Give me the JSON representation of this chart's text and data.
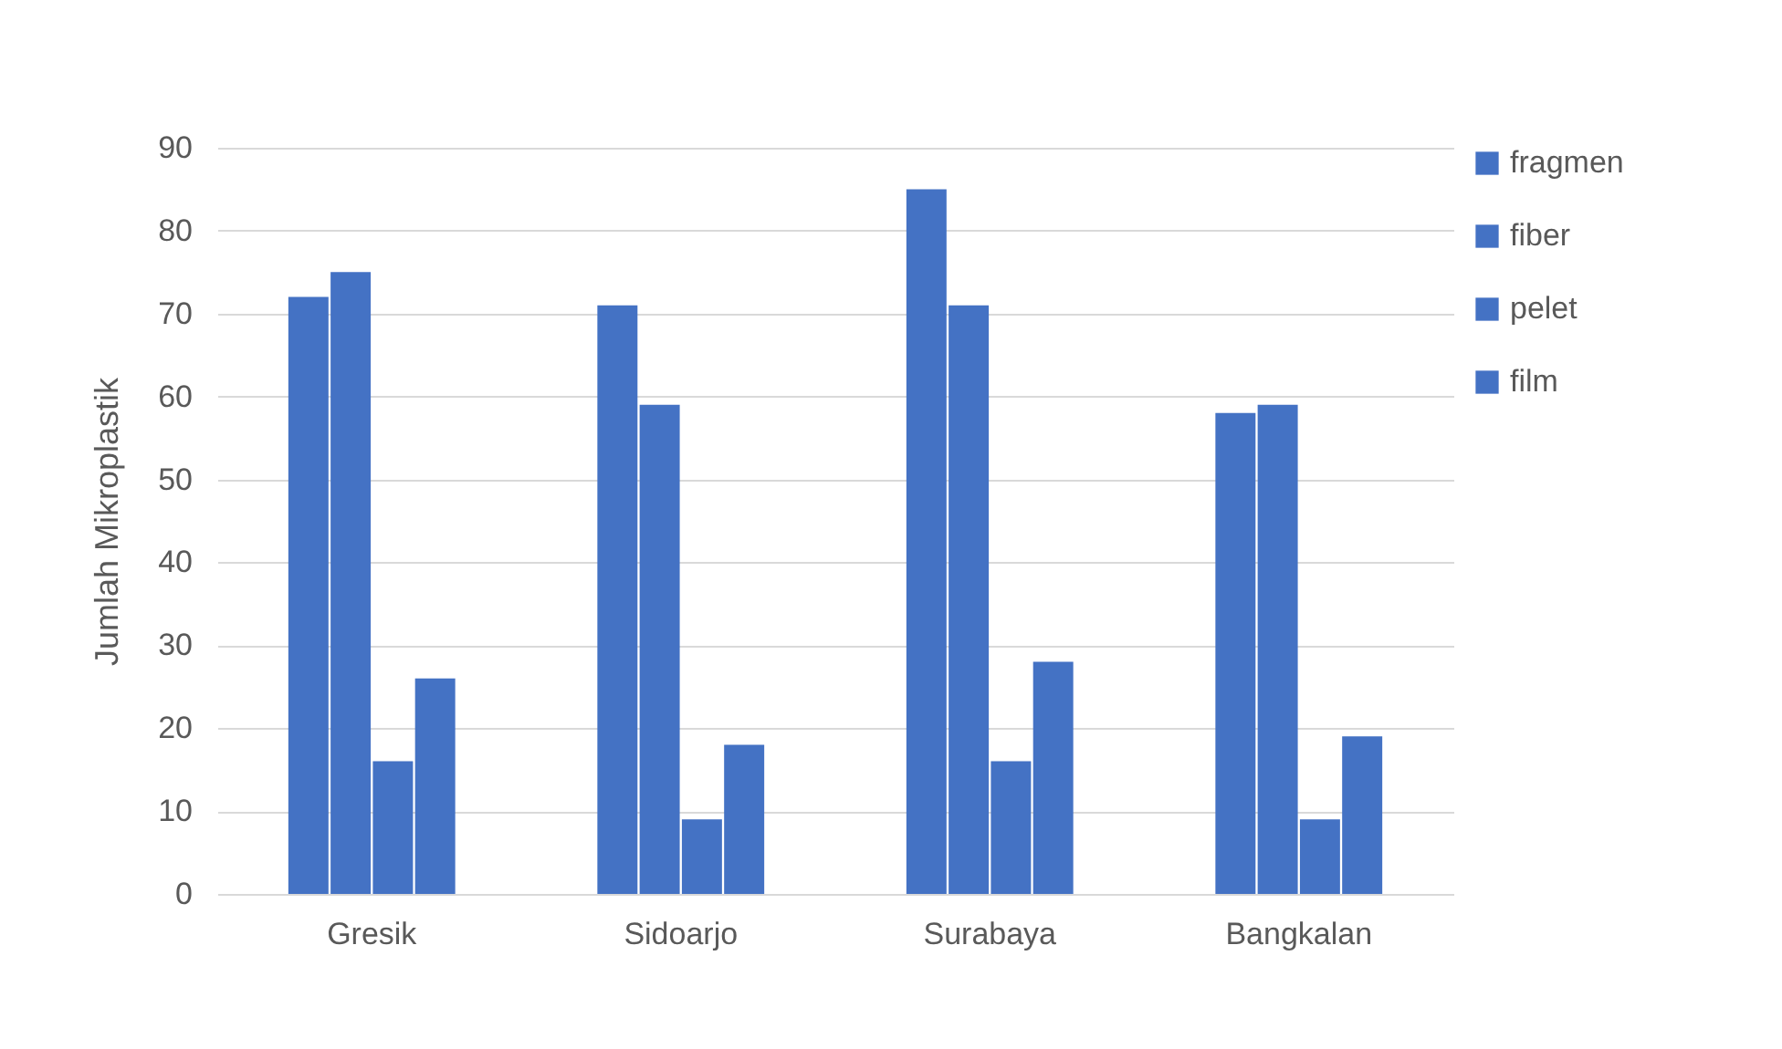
{
  "chart_data": {
    "type": "bar",
    "ylabel": "Jumlah Mikroplastik",
    "categories": [
      "Gresik",
      "Sidoarjo",
      "Surabaya",
      "Bangkalan"
    ],
    "series": [
      {
        "name": "fragmen",
        "color": "#4472c4",
        "values": [
          72,
          71,
          85,
          58
        ]
      },
      {
        "name": "fiber",
        "color": "#4472c4",
        "values": [
          75,
          59,
          71,
          59
        ]
      },
      {
        "name": "pelet",
        "color": "#4472c4",
        "values": [
          16,
          9,
          16,
          9
        ]
      },
      {
        "name": "film",
        "color": "#4472c4",
        "values": [
          26,
          18,
          28,
          19
        ]
      }
    ],
    "ylim": [
      0,
      90
    ],
    "yticks": [
      0,
      10,
      20,
      30,
      40,
      50,
      60,
      70,
      80,
      90
    ],
    "grid": "y",
    "legend": "right"
  }
}
